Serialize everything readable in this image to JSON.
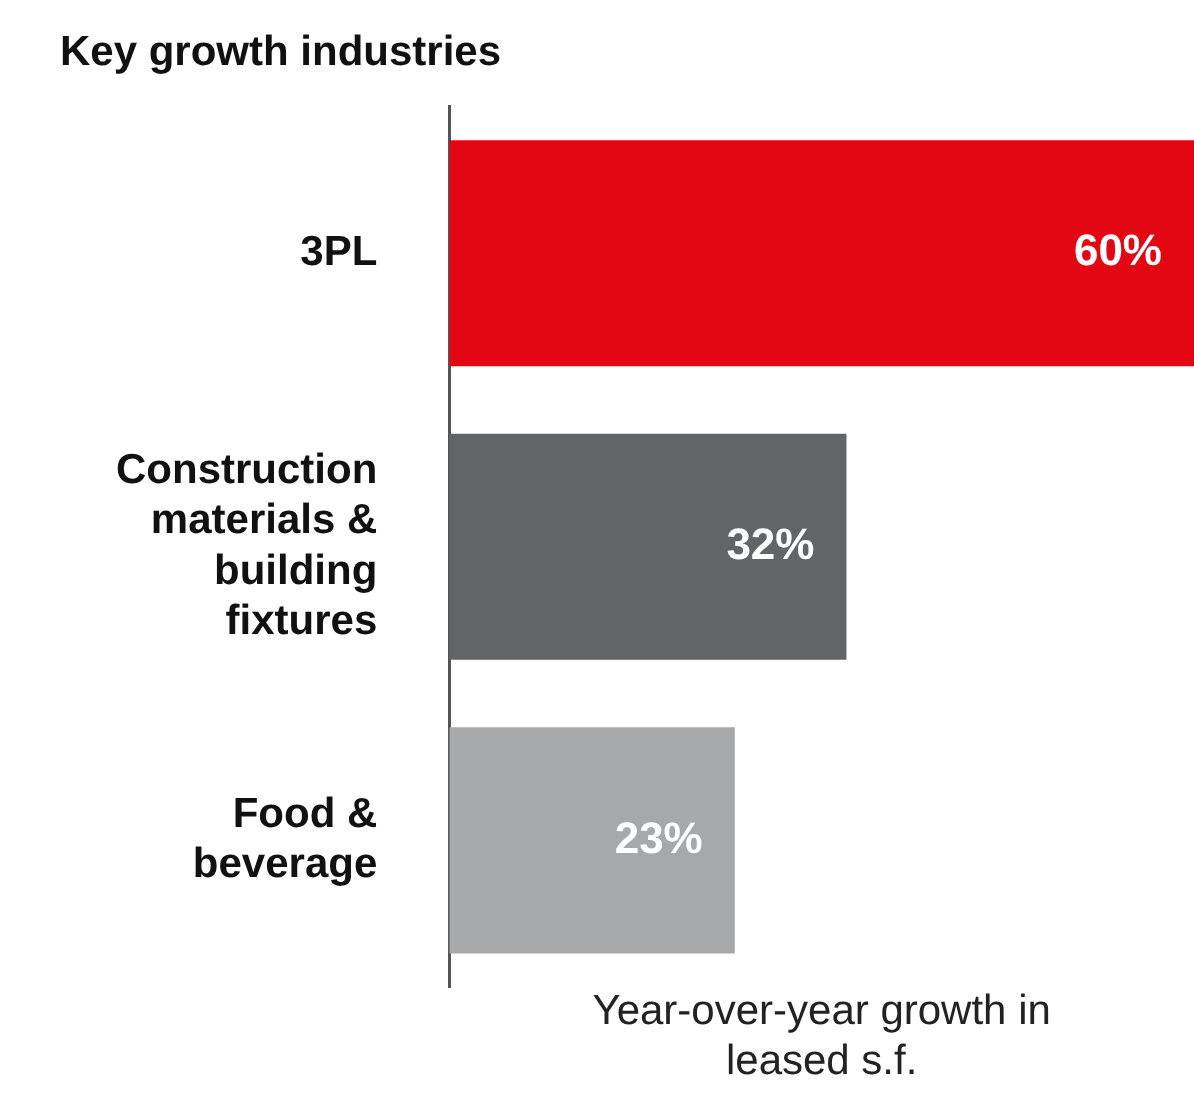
{
  "chart_data": {
    "type": "bar",
    "orientation": "horizontal",
    "title": "Key growth industries",
    "xlabel": "Year-over-year growth in leased s.f.",
    "categories": [
      "3PL",
      "Construction materials & building fixtures",
      "Food & beverage"
    ],
    "values": [
      60,
      32,
      23
    ],
    "colors": [
      "#e30613",
      "#636466",
      "#a7a8aa"
    ],
    "value_labels": [
      "60%",
      "32%",
      "23%"
    ],
    "xlim": [
      0,
      60
    ],
    "tick_labels": "y",
    "legend": false
  }
}
